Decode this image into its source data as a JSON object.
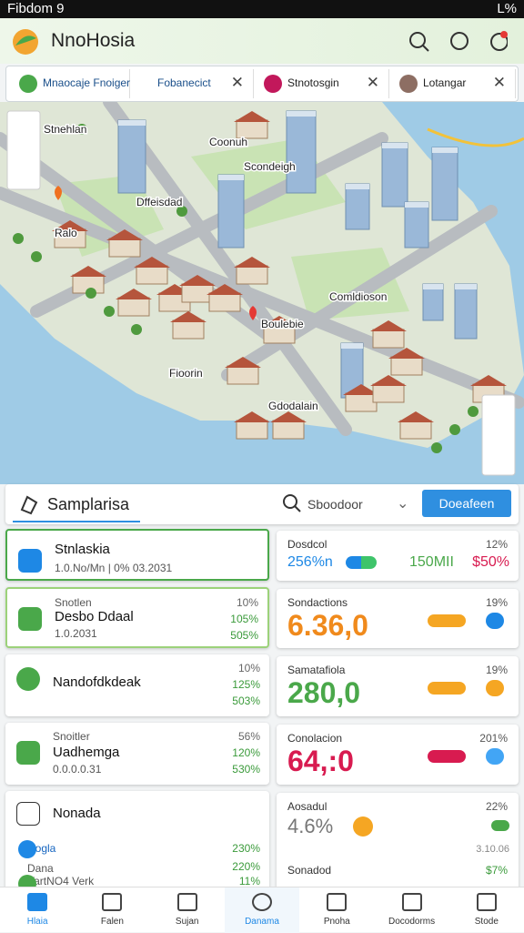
{
  "status_bar": {
    "time": "Fibdom 9",
    "battery": "L%"
  },
  "app_bar": {
    "title": "NnoHosia"
  },
  "tabs": [
    "Mnaocaje Fnoiger",
    "Fobanecict",
    "Stnotosgin",
    "Lotangar"
  ],
  "map": {
    "labels": [
      "Stnehlan",
      "Coonuh",
      "Scondeigh",
      "Dffeisdad",
      "Ralo",
      "Comldioson",
      "Boulebie",
      "Fioorin",
      "Gdodalain"
    ]
  },
  "search": {
    "title": "Samplarisa",
    "query": "Sboodoor",
    "button": "Doeafeen"
  },
  "left_cards": [
    {
      "lines": [
        "Stnlaskia",
        "1.0.No/Mn | 0% 03.2031"
      ]
    },
    {
      "lines": [
        "Snotlen",
        "Desbo Ddaal",
        "1.0.2031"
      ],
      "stats": [
        "10%",
        "105%",
        "505%"
      ]
    },
    {
      "lines": [
        "Nandofdkdeak"
      ],
      "stats": [
        "10%",
        "125%",
        "503%"
      ]
    },
    {
      "lines": [
        "Snoitler",
        "Uadhemga",
        "0.0.0.0.31"
      ],
      "stats": [
        "56%",
        "120%",
        "530%"
      ]
    },
    {
      "lines": [
        "Nonada",
        "Rogla",
        "Dana",
        "VartNO4 Verk"
      ],
      "stats": [
        "230%",
        "220%",
        "11%"
      ]
    }
  ],
  "right_cards": [
    {
      "title": "Dosdcol",
      "pct": "12%",
      "values": [
        "256%n",
        "150MII",
        "$50%"
      ]
    },
    {
      "title": "Sondactions",
      "pct": "19%",
      "big": "6.36,0"
    },
    {
      "title": "Samatafiola",
      "pct": "19%",
      "big": "280,0"
    },
    {
      "title": "Conolacion",
      "pct": "201%",
      "big": "64,:0"
    },
    {
      "title": "Aosadul",
      "pct": "22%",
      "big": "4.6%",
      "sub": "3.10.06",
      "title2": "Sonadod",
      "pct2": "$7%"
    }
  ],
  "nav": [
    "Hlaia",
    "Falen",
    "Sujan",
    "Danama",
    "Pnoha",
    "Docodorms",
    "Stode"
  ]
}
